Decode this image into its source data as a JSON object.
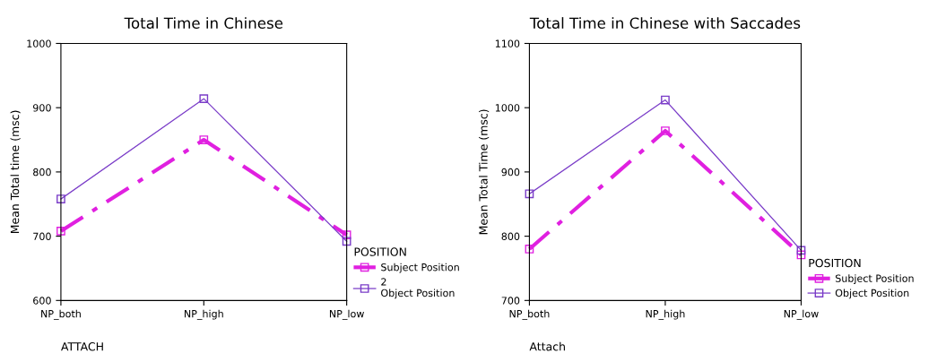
{
  "chart_data": [
    {
      "type": "line",
      "title": "Total Time in Chinese",
      "xlabel": "ATTACH",
      "ylabel": "Mean Total time (msc)",
      "legend_title": "POSITION",
      "categories": [
        "NP_both",
        "NP_high",
        "NP_low"
      ],
      "ylim": [
        600,
        1000
      ],
      "yticks": [
        600,
        700,
        800,
        900,
        1000
      ],
      "grid": false,
      "legend": "right",
      "marker": "square",
      "series": [
        {
          "name": "Subject Position",
          "color": "#e020e0",
          "line_style": "dashed",
          "values": [
            708,
            850,
            702
          ]
        },
        {
          "name": "2\nObject Position",
          "color": "#7a3cc8",
          "line_style": "solid",
          "values": [
            758,
            914,
            692
          ]
        }
      ]
    },
    {
      "type": "line",
      "title": "Total Time in Chinese with Saccades",
      "xlabel": "Attach",
      "ylabel": "Mean Total Time (msc)",
      "legend_title": "POSITION",
      "categories": [
        "NP_both",
        "NP_high",
        "NP_low"
      ],
      "ylim": [
        700,
        1100
      ],
      "yticks": [
        700,
        800,
        900,
        1000,
        1100
      ],
      "grid": false,
      "legend": "right",
      "marker": "square",
      "series": [
        {
          "name": "Subject Position",
          "color": "#e020e0",
          "line_style": "dashed",
          "values": [
            780,
            964,
            771
          ]
        },
        {
          "name": "Object Position",
          "color": "#7a3cc8",
          "line_style": "solid",
          "values": [
            866,
            1012,
            778
          ]
        }
      ]
    }
  ]
}
